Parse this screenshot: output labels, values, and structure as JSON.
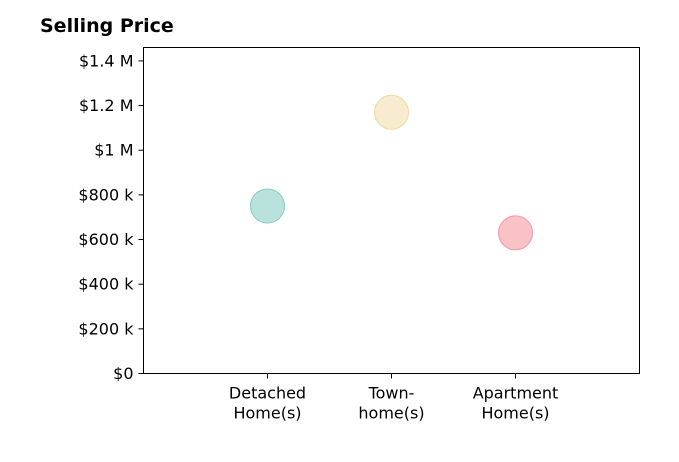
{
  "chart_data": {
    "type": "scatter",
    "title": "Selling Price",
    "xlabel": "",
    "ylabel": "",
    "categories": [
      [
        "Detached",
        "Home(s)"
      ],
      [
        "Town-",
        "home(s)"
      ],
      [
        "Apartment",
        "Home(s)"
      ]
    ],
    "values": [
      750000,
      1170000,
      630000
    ],
    "colors": [
      "#a8dbd4",
      "#f5e6c4",
      "#f6b3b8"
    ],
    "edge_colors": [
      "#85cbc1",
      "#eed9a6",
      "#ef9aa1"
    ],
    "ylim": [
      0,
      1460000
    ],
    "yticks": [
      0,
      200000,
      400000,
      600000,
      800000,
      1000000,
      1200000,
      1400000
    ],
    "ytick_labels": [
      "$0",
      "$200 k",
      "$400 k",
      "$600 k",
      "$800 k",
      "$1 M",
      "$1.2 M",
      "$1.4 M"
    ],
    "grid": false,
    "legend": "none"
  }
}
